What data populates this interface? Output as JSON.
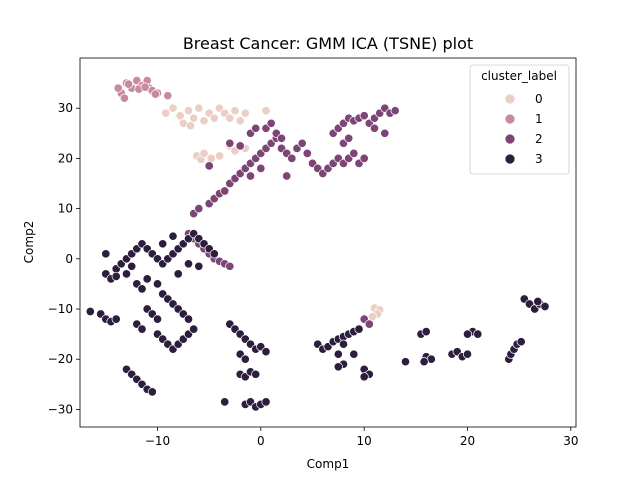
{
  "chart_data": {
    "type": "scatter",
    "title": "Breast Cancer: GMM ICA (TSNE) plot",
    "xlabel": "Comp1",
    "ylabel": "Comp2",
    "xlim": [
      -17.5,
      30.5
    ],
    "ylim": [
      -33.5,
      40.0
    ],
    "xticks": [
      -10,
      0,
      10,
      20,
      30
    ],
    "yticks": [
      -30,
      -20,
      -10,
      0,
      10,
      20,
      30
    ],
    "xtick_labels": [
      "−10",
      "0",
      "10",
      "20",
      "30"
    ],
    "ytick_labels": [
      "−30",
      "−20",
      "−10",
      "0",
      "10",
      "20",
      "30"
    ],
    "legend": {
      "title": "cluster_label",
      "placement": "top-right",
      "entries": [
        "0",
        "1",
        "2",
        "3"
      ]
    },
    "series": [
      {
        "name": "0",
        "color": "#ebcfc7",
        "points": [
          [
            -9.2,
            29
          ],
          [
            -8.5,
            30
          ],
          [
            -7.8,
            28.5
          ],
          [
            -7,
            29.5
          ],
          [
            -6.5,
            28
          ],
          [
            -6,
            30
          ],
          [
            -5.5,
            27.5
          ],
          [
            -5,
            29
          ],
          [
            -4.5,
            28
          ],
          [
            -4,
            30
          ],
          [
            -3.5,
            29
          ],
          [
            -3,
            28
          ],
          [
            -2.5,
            29.5
          ],
          [
            -2,
            27.5
          ],
          [
            -1.5,
            29
          ],
          [
            0.5,
            29.5
          ],
          [
            -7.5,
            27
          ],
          [
            -6.8,
            26.5
          ],
          [
            -6.2,
            20.5
          ],
          [
            -5.8,
            19.8
          ],
          [
            -5.5,
            21
          ],
          [
            -4.8,
            20
          ],
          [
            -4,
            20.5
          ],
          [
            -3,
            22.5
          ],
          [
            -2.5,
            21.5
          ],
          [
            -1.5,
            22
          ],
          [
            11,
            -9.8
          ],
          [
            11.5,
            -10.2
          ],
          [
            11.3,
            -11
          ],
          [
            10.8,
            -11.5
          ]
        ]
      },
      {
        "name": "1",
        "color": "#c98aa0",
        "points": [
          [
            -13.5,
            33
          ],
          [
            -13,
            35
          ],
          [
            -12.5,
            34
          ],
          [
            -12,
            35.5
          ],
          [
            -11.5,
            34.5
          ],
          [
            -11,
            35.5
          ],
          [
            -10.8,
            34
          ],
          [
            -10.5,
            33.5
          ],
          [
            -10,
            33
          ],
          [
            -9,
            32.5
          ],
          [
            -13.2,
            32
          ],
          [
            -12.8,
            34.8
          ],
          [
            -11.8,
            33.8
          ],
          [
            -11.2,
            34.2
          ],
          [
            -10.2,
            32.8
          ],
          [
            -13.8,
            34
          ]
        ]
      },
      {
        "name": "2",
        "color": "#7d4575",
        "points": [
          [
            -6.5,
            9
          ],
          [
            -6,
            10
          ],
          [
            -5,
            11
          ],
          [
            -4.5,
            12
          ],
          [
            -4,
            13
          ],
          [
            -3.5,
            13.5
          ],
          [
            -3,
            15
          ],
          [
            -2.5,
            16
          ],
          [
            -2,
            17
          ],
          [
            -1.5,
            18
          ],
          [
            -1,
            19
          ],
          [
            -0.5,
            20
          ],
          [
            0,
            21
          ],
          [
            0.5,
            22
          ],
          [
            1,
            23
          ],
          [
            1.5,
            24
          ],
          [
            2,
            22
          ],
          [
            2.5,
            21
          ],
          [
            3,
            20
          ],
          [
            3.5,
            22
          ],
          [
            4,
            23
          ],
          [
            4.5,
            21
          ],
          [
            5,
            19
          ],
          [
            5.5,
            18
          ],
          [
            6,
            17
          ],
          [
            6.5,
            18
          ],
          [
            7,
            19
          ],
          [
            7.5,
            20
          ],
          [
            8,
            19
          ],
          [
            8.5,
            20
          ],
          [
            9,
            21
          ],
          [
            9.5,
            19
          ],
          [
            10,
            20
          ],
          [
            -1,
            25
          ],
          [
            -0.5,
            26
          ],
          [
            0.5,
            26
          ],
          [
            1,
            27
          ],
          [
            1.5,
            25
          ],
          [
            2,
            24
          ],
          [
            -3,
            23
          ],
          [
            -2,
            22.5
          ],
          [
            7,
            25
          ],
          [
            7.5,
            26
          ],
          [
            8,
            27
          ],
          [
            8.5,
            28
          ],
          [
            9,
            27.5
          ],
          [
            9.5,
            28
          ],
          [
            10,
            28.5
          ],
          [
            10.5,
            27
          ],
          [
            11,
            28
          ],
          [
            11.5,
            29
          ],
          [
            12,
            30
          ],
          [
            12.5,
            29
          ],
          [
            13,
            29.5
          ],
          [
            11,
            26
          ],
          [
            12,
            25
          ],
          [
            8,
            23
          ],
          [
            8.5,
            24
          ],
          [
            -7,
            5
          ],
          [
            -6.5,
            4
          ],
          [
            -6,
            3
          ],
          [
            -5.5,
            2
          ],
          [
            -5,
            1
          ],
          [
            -4.5,
            0
          ],
          [
            -4,
            -0.5
          ],
          [
            -3.5,
            -1
          ],
          [
            -3,
            -1.5
          ],
          [
            10,
            -12
          ],
          [
            10.5,
            -13
          ],
          [
            0,
            18
          ],
          [
            -1,
            16.5
          ],
          [
            2.5,
            16.5
          ],
          [
            -5,
            18.5
          ]
        ]
      },
      {
        "name": "3",
        "color": "#2d1e3e",
        "points": [
          [
            -16.5,
            -10.5
          ],
          [
            -15.5,
            -11
          ],
          [
            -15,
            -12
          ],
          [
            -14.5,
            -12.5
          ],
          [
            -14,
            -12
          ],
          [
            -15,
            -3
          ],
          [
            -14.5,
            -4
          ],
          [
            -14,
            -2
          ],
          [
            -13.5,
            -1
          ],
          [
            -13,
            0
          ],
          [
            -12.5,
            1
          ],
          [
            -12,
            2
          ],
          [
            -11.5,
            3
          ],
          [
            -11,
            2
          ],
          [
            -10.5,
            1
          ],
          [
            -10,
            0
          ],
          [
            -9.5,
            -1
          ],
          [
            -9,
            0
          ],
          [
            -8.5,
            1
          ],
          [
            -8,
            2
          ],
          [
            -7.5,
            3
          ],
          [
            -7,
            4
          ],
          [
            -6.5,
            5
          ],
          [
            -6,
            4
          ],
          [
            -5.5,
            3
          ],
          [
            -5,
            2
          ],
          [
            -4.5,
            1
          ],
          [
            -12,
            -5
          ],
          [
            -11.5,
            -6
          ],
          [
            -11,
            -4
          ],
          [
            -10,
            -5
          ],
          [
            -9.5,
            -7
          ],
          [
            -9,
            -8
          ],
          [
            -8.5,
            -9
          ],
          [
            -8,
            -10
          ],
          [
            -7.5,
            -11
          ],
          [
            -7,
            -12
          ],
          [
            -11,
            -10
          ],
          [
            -10.5,
            -11
          ],
          [
            -10,
            -12
          ],
          [
            -12,
            -13
          ],
          [
            -11.5,
            -14
          ],
          [
            -10,
            -15
          ],
          [
            -9.5,
            -16
          ],
          [
            -9,
            -17
          ],
          [
            -8.5,
            -18
          ],
          [
            -8,
            -17
          ],
          [
            -7.5,
            -16
          ],
          [
            -7,
            -15
          ],
          [
            -6.5,
            -14
          ],
          [
            -13,
            -22
          ],
          [
            -12.5,
            -23
          ],
          [
            -12,
            -24
          ],
          [
            -11.5,
            -25
          ],
          [
            -11,
            -26
          ],
          [
            -10.5,
            -26.5
          ],
          [
            -3.5,
            -28.5
          ],
          [
            -1.5,
            -29
          ],
          [
            -1,
            -28.5
          ],
          [
            -0.5,
            -29.5
          ],
          [
            0,
            -29
          ],
          [
            0.5,
            -28.5
          ],
          [
            -2,
            -23
          ],
          [
            -1.5,
            -23.5
          ],
          [
            -1,
            -22.5
          ],
          [
            -0.5,
            -23
          ],
          [
            -3,
            -13
          ],
          [
            -2.5,
            -14
          ],
          [
            -2,
            -15
          ],
          [
            -1.5,
            -16
          ],
          [
            -1,
            -17
          ],
          [
            -0.5,
            -18
          ],
          [
            0,
            -17.5
          ],
          [
            0.5,
            -18.5
          ],
          [
            -2,
            -19
          ],
          [
            -1.5,
            -20
          ],
          [
            5.5,
            -17
          ],
          [
            6,
            -18
          ],
          [
            6.5,
            -17.5
          ],
          [
            7,
            -16.5
          ],
          [
            7.5,
            -16
          ],
          [
            8,
            -15.5
          ],
          [
            8.5,
            -15
          ],
          [
            9,
            -14.5
          ],
          [
            9.5,
            -14
          ],
          [
            8,
            -17
          ],
          [
            7.5,
            -19
          ],
          [
            8,
            -21
          ],
          [
            7.5,
            -21.5
          ],
          [
            9,
            -19
          ],
          [
            10,
            -22
          ],
          [
            10.5,
            -23
          ],
          [
            10,
            -23.5
          ],
          [
            14,
            -20.5
          ],
          [
            15.5,
            -15
          ],
          [
            16,
            -14.5
          ],
          [
            16,
            -19.5
          ],
          [
            16.5,
            -20
          ],
          [
            15.8,
            -20.5
          ],
          [
            18.5,
            -19
          ],
          [
            19,
            -18.5
          ],
          [
            19.5,
            -19.5
          ],
          [
            20,
            -19
          ],
          [
            20.5,
            -14.5
          ],
          [
            21,
            -15
          ],
          [
            20,
            -15
          ],
          [
            24,
            -20
          ],
          [
            24.2,
            -19
          ],
          [
            24.5,
            -18
          ],
          [
            24.8,
            -17
          ],
          [
            25.2,
            -16.5
          ],
          [
            25.5,
            -8
          ],
          [
            26,
            -9
          ],
          [
            26.5,
            -10
          ],
          [
            27,
            -9
          ],
          [
            27.5,
            -9.5
          ],
          [
            26.8,
            -8.5
          ],
          [
            -15,
            1
          ],
          [
            -14,
            -3.5
          ],
          [
            -13,
            -3
          ],
          [
            -12.5,
            -1.5
          ],
          [
            -7,
            -1
          ],
          [
            -8,
            -3
          ],
          [
            -9.5,
            3
          ],
          [
            -8.5,
            4.5
          ],
          [
            -6,
            -1.5
          ]
        ]
      }
    ]
  }
}
